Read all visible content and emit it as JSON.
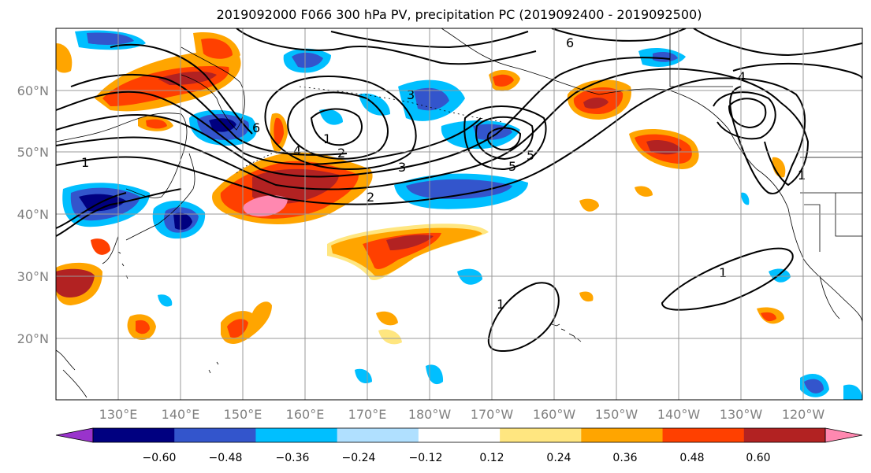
{
  "title": "2019092000 F066 300 hPa PV, precipitation PC (2019092400 - 2019092500)",
  "lat_labels": [
    "60°N",
    "50°N",
    "40°N",
    "30°N",
    "20°N"
  ],
  "lon_labels": [
    "130°E",
    "140°E",
    "150°E",
    "160°E",
    "170°E",
    "180°W",
    "170°W",
    "160°W",
    "150°W",
    "140°W",
    "130°W",
    "120°W"
  ],
  "colorbar": {
    "ticks": [
      "−0.60",
      "−0.48",
      "−0.36",
      "−0.24",
      "−0.12",
      "0.12",
      "0.24",
      "0.36",
      "0.48",
      "0.60"
    ],
    "colors": [
      "#9933cc",
      "#000080",
      "#3355cc",
      "#00bfff",
      "#b0e0ff",
      "#ffffff",
      "#ffe680",
      "#ffa500",
      "#ff4000",
      "#b22222",
      "#ff88b0"
    ]
  },
  "contour_labels": [
    "1",
    "2",
    "3",
    "4",
    "5",
    "6",
    "1",
    "2",
    "3",
    "1",
    "1",
    "1",
    "4",
    "5",
    "6"
  ],
  "palette": {
    "grid": "#999999",
    "axis_text": "#808080",
    "coast": "#000000"
  }
}
